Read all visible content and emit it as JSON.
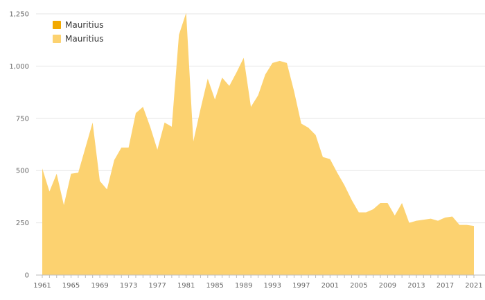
{
  "chart_data": {
    "type": "area",
    "title": "",
    "xlabel": "",
    "ylabel": "",
    "xlim": [
      1961,
      2021
    ],
    "ylim": [
      0,
      1250
    ],
    "grid": true,
    "legend_position": "top-left",
    "y_ticks": [
      "0",
      "250",
      "500",
      "750",
      "1,000",
      "1,250"
    ],
    "y_tick_values": [
      0,
      250,
      500,
      750,
      1000,
      1250
    ],
    "x_ticks": [
      "1961",
      "1965",
      "1969",
      "1973",
      "1977",
      "1981",
      "1985",
      "1989",
      "1993",
      "1997",
      "2001",
      "2005",
      "2009",
      "2013",
      "2017",
      "2021"
    ],
    "x_tick_values": [
      1961,
      1965,
      1969,
      1973,
      1977,
      1981,
      1985,
      1989,
      1993,
      1997,
      2001,
      2005,
      2009,
      2013,
      2017,
      2021
    ],
    "legend": [
      {
        "name": "Mauritius",
        "color": "#f2a900"
      },
      {
        "name": "Mauritius",
        "color": "#fcd270"
      }
    ],
    "series": [
      {
        "name": "Mauritius",
        "color": "#fcd270",
        "x": [
          1961,
          1962,
          1963,
          1964,
          1965,
          1966,
          1967,
          1968,
          1969,
          1970,
          1971,
          1972,
          1973,
          1974,
          1975,
          1976,
          1977,
          1978,
          1979,
          1980,
          1981,
          1982,
          1983,
          1984,
          1985,
          1986,
          1987,
          1988,
          1989,
          1990,
          1991,
          1992,
          1993,
          1994,
          1995,
          1996,
          1997,
          1998,
          1999,
          2000,
          2001,
          2002,
          2003,
          2004,
          2005,
          2006,
          2007,
          2008,
          2009,
          2010,
          2011,
          2012,
          2013,
          2014,
          2015,
          2016,
          2017,
          2018,
          2019,
          2020,
          2021
        ],
        "values": [
          510,
          400,
          485,
          335,
          485,
          490,
          610,
          730,
          450,
          410,
          550,
          610,
          610,
          775,
          805,
          710,
          600,
          730,
          710,
          1150,
          1255,
          640,
          795,
          940,
          840,
          945,
          905,
          970,
          1040,
          805,
          860,
          960,
          1015,
          1025,
          1015,
          880,
          725,
          705,
          670,
          565,
          555,
          490,
          430,
          360,
          300,
          300,
          315,
          345,
          345,
          285,
          345,
          250,
          260,
          265,
          270,
          260,
          275,
          280,
          240,
          240,
          235
        ]
      }
    ]
  }
}
